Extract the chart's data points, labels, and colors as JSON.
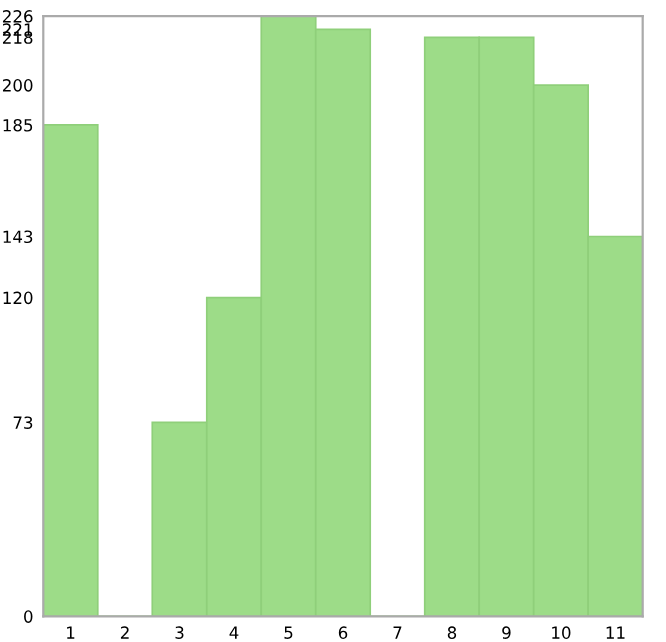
{
  "chart_data": {
    "type": "bar",
    "categories": [
      "1",
      "2",
      "3",
      "4",
      "5",
      "6",
      "7",
      "8",
      "9",
      "10",
      "11"
    ],
    "values": [
      185,
      0,
      73,
      120,
      226,
      221,
      0,
      218,
      218,
      200,
      143
    ],
    "color": "#9ddc88",
    "ylim": [
      0,
      226
    ],
    "yticks": [
      0,
      73,
      120,
      143,
      185,
      200,
      218,
      221,
      226
    ],
    "grid": false
  }
}
